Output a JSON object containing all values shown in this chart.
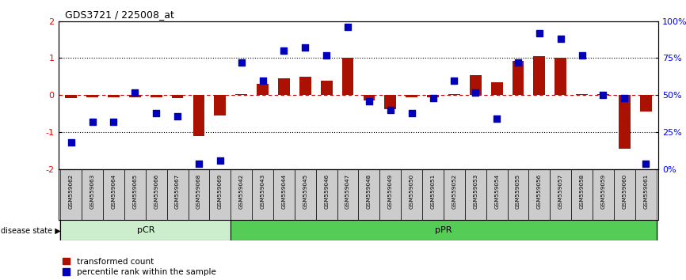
{
  "title": "GDS3721 / 225008_at",
  "samples": [
    "GSM559062",
    "GSM559063",
    "GSM559064",
    "GSM559065",
    "GSM559066",
    "GSM559067",
    "GSM559068",
    "GSM559069",
    "GSM559042",
    "GSM559043",
    "GSM559044",
    "GSM559045",
    "GSM559046",
    "GSM559047",
    "GSM559048",
    "GSM559049",
    "GSM559050",
    "GSM559051",
    "GSM559052",
    "GSM559053",
    "GSM559054",
    "GSM559055",
    "GSM559056",
    "GSM559057",
    "GSM559058",
    "GSM559059",
    "GSM559060",
    "GSM559061"
  ],
  "red_values": [
    -0.08,
    -0.05,
    -0.05,
    -0.05,
    -0.05,
    -0.08,
    -1.1,
    -0.55,
    0.02,
    0.3,
    0.45,
    0.5,
    0.4,
    1.0,
    -0.15,
    -0.38,
    -0.05,
    -0.05,
    0.02,
    0.55,
    0.35,
    0.92,
    1.05,
    1.0,
    0.02,
    0.02,
    -1.45,
    -0.45
  ],
  "blue_values": [
    18,
    32,
    32,
    52,
    38,
    36,
    4,
    6,
    72,
    60,
    80,
    82,
    77,
    96,
    46,
    40,
    38,
    48,
    60,
    52,
    34,
    72,
    92,
    88,
    77,
    50,
    48,
    4
  ],
  "pcr_count": 8,
  "ppr_count": 20,
  "ylim": [
    -2,
    2
  ],
  "yticks_left": [
    -2,
    -1,
    0,
    1,
    2
  ],
  "yticks_right": [
    0,
    25,
    50,
    75,
    100
  ],
  "bar_color": "#aa1100",
  "dot_color": "#0000bb",
  "pcr_color": "#cceecc",
  "ppr_color": "#55cc55",
  "label_bg_color": "#cccccc",
  "hline_color": "#cc0000",
  "dotline_color": "#000000",
  "bar_width": 0.55,
  "dot_size": 30
}
